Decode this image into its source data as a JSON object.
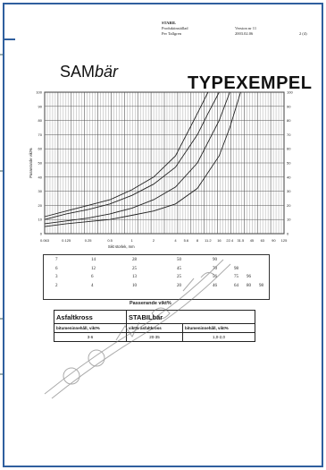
{
  "header": {
    "company": "STABIL",
    "product_line": "Produktinställad",
    "author": "Per Tallgren",
    "version": "Version nr 11",
    "date": "2003.02.06",
    "page": "2 (4)"
  },
  "brand": {
    "prefix": "SAM",
    "italic": "bär"
  },
  "doc_title": "TYPEXEMPEL",
  "chart_data": {
    "type": "line",
    "ylabel": "Passerande vikt%",
    "xlabel": "Sikt storlek, mm",
    "x_scale": "log",
    "ylim": [
      0,
      100
    ],
    "y_ticks": [
      "0",
      "10",
      "20",
      "30",
      "40",
      "50",
      "60",
      "70",
      "80",
      "90",
      "100"
    ],
    "x_ticks": [
      "0.063",
      "0.125",
      "0.25",
      "0.5",
      "1",
      "2",
      "4",
      "5.6",
      "8",
      "11.2",
      "16",
      "22.4",
      "31.5",
      "45",
      "63",
      "90",
      "125"
    ],
    "grid": true,
    "series": [
      {
        "x": [
          0.063,
          0.125,
          0.25,
          0.5,
          1,
          2,
          4,
          8,
          16,
          22.4,
          31.5
        ],
        "y": [
          5,
          7,
          8.5,
          10,
          13,
          16,
          21,
          32,
          55,
          75,
          100
        ]
      },
      {
        "x": [
          0.063,
          0.125,
          0.25,
          0.5,
          1,
          2,
          4,
          8,
          16,
          22.4
        ],
        "y": [
          7,
          9,
          11,
          14,
          18,
          24,
          33,
          50,
          80,
          100
        ]
      },
      {
        "x": [
          0.063,
          0.125,
          0.25,
          0.5,
          1,
          2,
          4,
          8,
          11.2,
          16
        ],
        "y": [
          10,
          14,
          17,
          21,
          27,
          35,
          47,
          70,
          85,
          100
        ]
      },
      {
        "x": [
          0.063,
          0.125,
          0.25,
          0.5,
          1,
          2,
          4,
          8,
          11.2
        ],
        "y": [
          12,
          16,
          20,
          24,
          31,
          40,
          55,
          85,
          100
        ]
      }
    ]
  },
  "table": {
    "rows": [
      [
        "7",
        "14",
        "28",
        "50",
        "90"
      ],
      [
        "6",
        "12",
        "25",
        "45",
        "70",
        "98"
      ],
      [
        "3",
        "6",
        "13",
        "25",
        "56",
        "75",
        "96"
      ],
      [
        "2",
        "4",
        "10",
        "20",
        "46",
        "64",
        "80",
        "98"
      ]
    ],
    "footer": "Passerande vikt%"
  },
  "spec": {
    "head_left": "Asfaltkross",
    "head_right": "STABILbär",
    "sub": [
      "bitumeninnehåll, vikt%",
      "vikt% asfaltkross",
      "bitumeninnehåll, vikt%"
    ],
    "values": [
      "3-6",
      "20-35",
      "1,0-2,0"
    ]
  },
  "colors": {
    "frame": "#2f5f9e",
    "curve": "#222222",
    "grid": "#555555"
  }
}
